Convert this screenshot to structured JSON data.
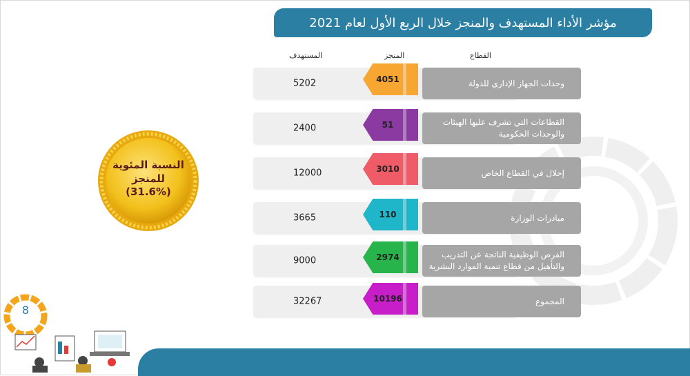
{
  "title": "مؤشر الأداء المستهدف والمنجز خلال الربع الأول لعام 2021",
  "headers": {
    "sector": "القطاع",
    "achieved": "المنجز",
    "target": "المستهدف"
  },
  "rows": [
    {
      "sector": "وحدات الجهاز الإداري للدولة",
      "achieved": "4051",
      "target": "5202",
      "color": "#f7a632"
    },
    {
      "sector": "القطاعات التي تشرف عليها الهيئات والوحدات الحكومية",
      "achieved": "51",
      "target": "2400",
      "color": "#8a3aa0"
    },
    {
      "sector": "إحلال في القطاع الخاص",
      "achieved": "3010",
      "target": "12000",
      "color": "#ef5b67"
    },
    {
      "sector": "مبادرات الوزارة",
      "achieved": "110",
      "target": "3665",
      "color": "#1fb6c9"
    },
    {
      "sector": "الفرص الوظيفية الناتجة عن التدريب والتأهيل من قطاع تنمية الموارد البشرية",
      "achieved": "2974",
      "target": "9000",
      "color": "#27b54b"
    },
    {
      "sector": "المجموع",
      "achieved": "10196",
      "target": "32267",
      "color": "#c71ec9"
    }
  ],
  "badge": {
    "line1": "النسبة المئوية",
    "line2": "للمنجز",
    "line3": "(31.6%)"
  },
  "page_number": "8"
}
